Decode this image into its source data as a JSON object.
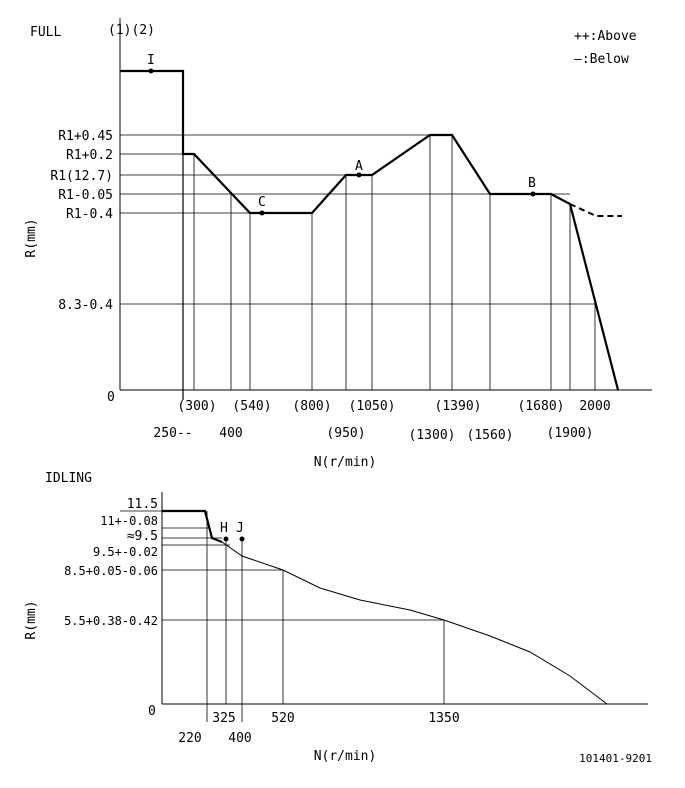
{
  "full": {
    "title": "FULL",
    "notes": "(1)(2)",
    "legend_above": "++:Above",
    "legend_below": "—:Below",
    "y_axis_label": "R(mm)",
    "x_axis_label": "N(r/min)",
    "origin": "0",
    "y_ticks": [
      "R1+0.45",
      "R1+0.2",
      "R1(12.7)",
      "R1-0.05",
      "R1-0.4",
      "8.3-0.4"
    ],
    "x_ticks_upper": [
      "(300)",
      "(540)",
      "(800)",
      "(1050)",
      "(1390)",
      "(1680)",
      "2000"
    ],
    "x_ticks_lower": [
      "250--",
      "400",
      "(950)",
      "(1300)",
      "(1560)",
      "(1900)"
    ],
    "points": [
      "I",
      "C",
      "A",
      "B"
    ]
  },
  "idling": {
    "title": "IDLING",
    "y_axis_label": "R(mm)",
    "x_axis_label": "N(r/min)",
    "origin": "0",
    "y_ticks": [
      "11.5",
      "11+-0.08",
      "≈9.5",
      "9.5+-0.02",
      "8.5+0.05-0.06",
      "5.5+0.38-0.42"
    ],
    "x_ticks_upper": [
      "325",
      "520",
      "1350"
    ],
    "x_ticks_lower": [
      "220",
      "400"
    ],
    "points": [
      "H",
      "J"
    ]
  },
  "reference": "101401-9201"
}
